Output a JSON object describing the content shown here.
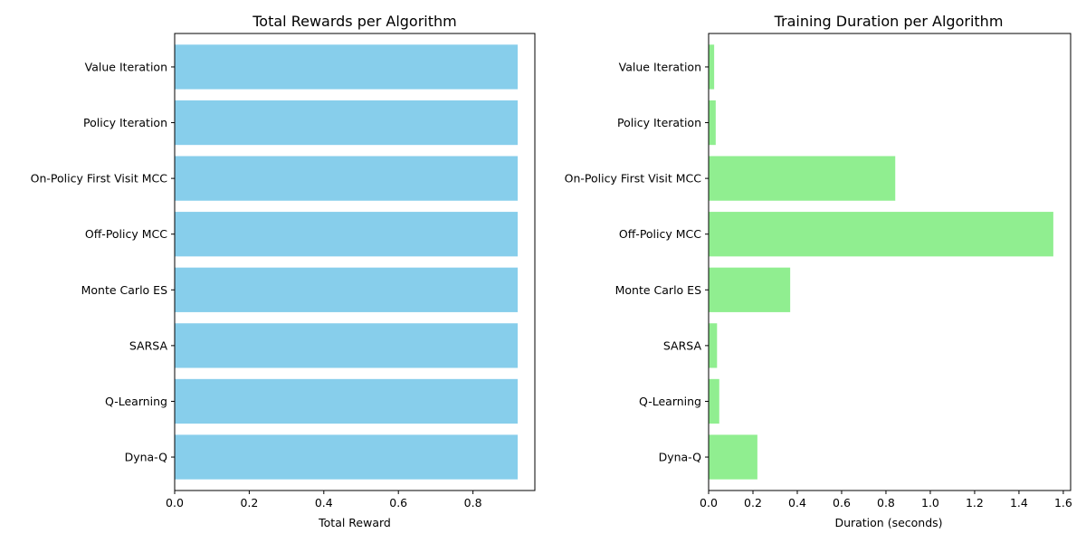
{
  "chart_data": [
    {
      "type": "bar",
      "orientation": "horizontal",
      "title": "Total Rewards per Algorithm",
      "xlabel": "Total Reward",
      "ylabel": "",
      "categories": [
        "Value Iteration",
        "Policy Iteration",
        "On-Policy First Visit MCC",
        "Off-Policy MCC",
        "Monte Carlo ES",
        "SARSA",
        "Q-Learning",
        "Dyna-Q"
      ],
      "values": [
        0.92,
        0.92,
        0.92,
        0.92,
        0.92,
        0.92,
        0.92,
        0.92
      ],
      "xlim": [
        0,
        0.966
      ],
      "xticks": [
        0.0,
        0.2,
        0.4,
        0.6,
        0.8
      ],
      "xtick_labels": [
        "0.0",
        "0.2",
        "0.4",
        "0.6",
        "0.8"
      ],
      "color": "#87ceeb",
      "grid": false
    },
    {
      "type": "bar",
      "orientation": "horizontal",
      "title": "Training Duration per Algorithm",
      "xlabel": "Duration (seconds)",
      "ylabel": "",
      "categories": [
        "Value Iteration",
        "Policy Iteration",
        "On-Policy First Visit MCC",
        "Off-Policy MCC",
        "Monte Carlo ES",
        "SARSA",
        "Q-Learning",
        "Dyna-Q"
      ],
      "values": [
        0.025,
        0.032,
        0.842,
        1.555,
        0.368,
        0.038,
        0.048,
        0.22
      ],
      "xlim": [
        0,
        1.633
      ],
      "xticks": [
        0.0,
        0.2,
        0.4,
        0.6,
        0.8,
        1.0,
        1.2,
        1.4,
        1.6
      ],
      "xtick_labels": [
        "0.0",
        "0.2",
        "0.4",
        "0.6",
        "0.8",
        "1.0",
        "1.2",
        "1.4",
        "1.6"
      ],
      "color": "#90ee90",
      "grid": false
    }
  ]
}
